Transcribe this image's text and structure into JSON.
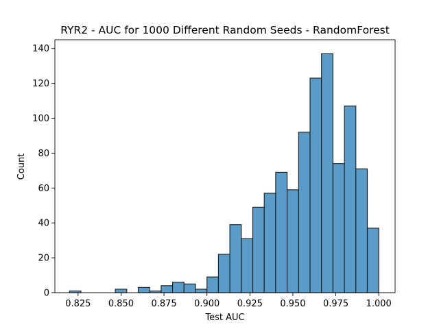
{
  "chart_data": {
    "type": "bar",
    "title": "RYR2 - AUC for 1000 Different Random Seeds - RandomForest",
    "xlabel": "Test AUC",
    "ylabel": "Count",
    "bar_color": "#5b9bc8",
    "edge_color": "#1a1a1a",
    "xlim": [
      0.8115,
      1.0095
    ],
    "ylim": [
      0,
      145
    ],
    "x_ticks": [
      0.825,
      0.85,
      0.875,
      0.9,
      0.925,
      0.95,
      0.975,
      1.0
    ],
    "x_tick_labels": [
      "0.825",
      "0.850",
      "0.875",
      "0.900",
      "0.925",
      "0.950",
      "0.975",
      "1.000"
    ],
    "y_ticks": [
      0,
      20,
      40,
      60,
      80,
      100,
      120,
      140
    ],
    "y_tick_labels": [
      "0",
      "20",
      "40",
      "60",
      "80",
      "100",
      "120",
      "140"
    ],
    "bin_start": 0.82,
    "bin_width": 0.0066667,
    "counts": [
      1,
      0,
      0,
      0,
      2,
      0,
      3,
      1,
      4,
      6,
      5,
      2,
      9,
      22,
      39,
      31,
      49,
      57,
      69,
      59,
      92,
      123,
      137,
      74,
      107,
      71,
      37
    ]
  }
}
